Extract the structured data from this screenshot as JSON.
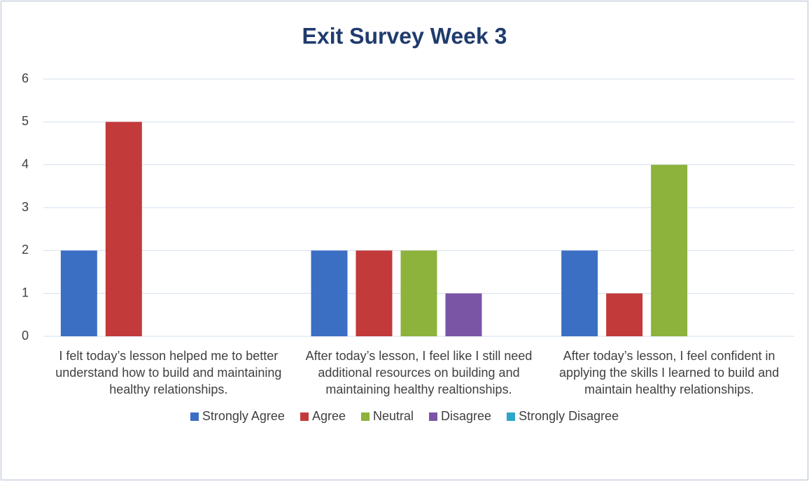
{
  "chart_data": {
    "type": "bar",
    "title": "Exit Survey Week 3",
    "categories": [
      "I felt today’s lesson helped me to better understand how to build and maintaining healthy relationships.",
      "After today’s lesson, I feel like I still need additional resources on building and maintaining healthy realtionships.",
      "After today’s lesson, I feel confident in applying the skills I learned to build and maintain healthy relationships."
    ],
    "series": [
      {
        "name": "Strongly Agree",
        "color": "#3b6fc3",
        "values": [
          2,
          2,
          2
        ]
      },
      {
        "name": "Agree",
        "color": "#c23a3a",
        "values": [
          5,
          2,
          1
        ]
      },
      {
        "name": "Neutral",
        "color": "#8db33c",
        "values": [
          0,
          2,
          4
        ]
      },
      {
        "name": "Disagree",
        "color": "#7a55a6",
        "values": [
          0,
          1,
          0
        ]
      },
      {
        "name": "Strongly Disagree",
        "color": "#2ba8c9",
        "values": [
          0,
          0,
          0
        ]
      }
    ],
    "ylim": [
      0,
      6
    ],
    "yticks": [
      0,
      1,
      2,
      3,
      4,
      5,
      6
    ],
    "grid": true,
    "legend": "bottom"
  }
}
